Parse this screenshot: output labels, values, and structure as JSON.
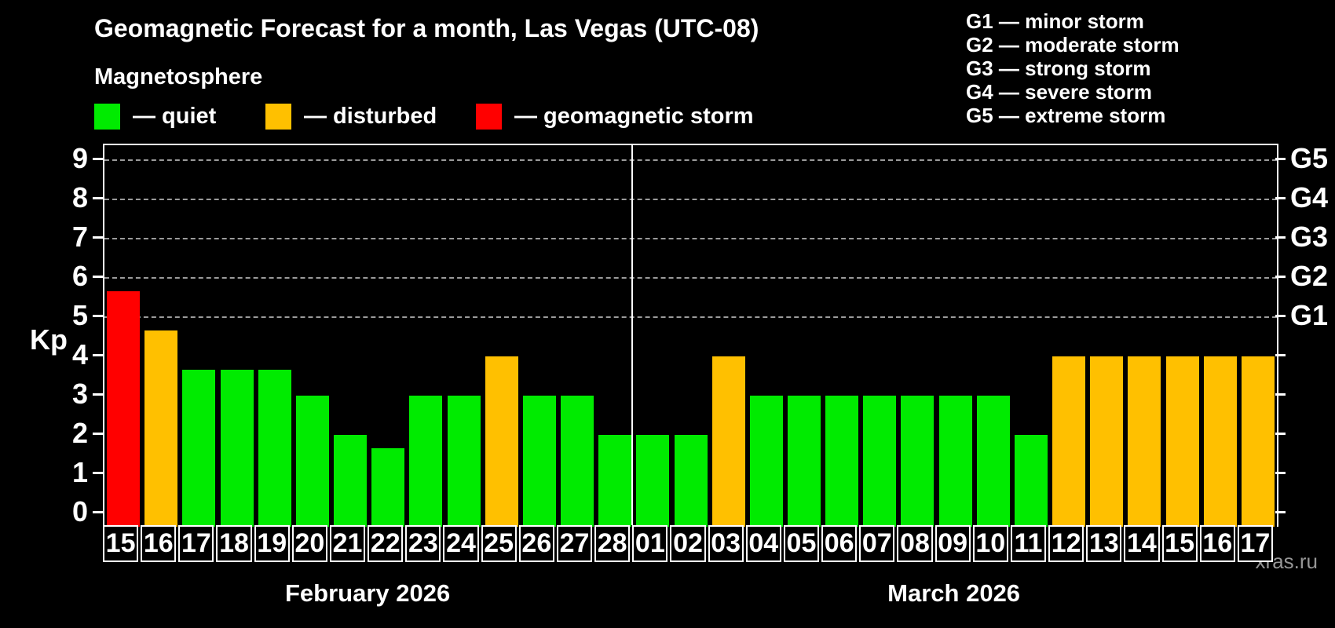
{
  "title": "Geomagnetic Forecast for a month, Las Vegas (UTC-08)",
  "subtitle": "Magnetosphere",
  "legend": [
    {
      "key": "quiet",
      "label": "— quiet",
      "color": "#00EB00"
    },
    {
      "key": "disturbed",
      "label": "— disturbed",
      "color": "#FFC000"
    },
    {
      "key": "storm",
      "label": "— geomagnetic storm",
      "color": "#FF0000"
    }
  ],
  "legend_offsets": [
    0,
    218,
    486
  ],
  "g_legend": [
    "G1 — minor storm",
    "G2 — moderate storm",
    "G3 — strong storm",
    "G4 — severe storm",
    "G5 — extreme storm"
  ],
  "watermark": "xras.ru",
  "chart_data": {
    "type": "bar",
    "ylabel": "Kp",
    "ylim": [
      -0.34,
      9.38
    ],
    "y_ticks": [
      0,
      1,
      2,
      3,
      4,
      5,
      6,
      7,
      8,
      9
    ],
    "gridlines_at": [
      5,
      6,
      7,
      8,
      9
    ],
    "grid": "dashed horizontal at G-storm levels only",
    "right_axis": [
      {
        "kp": 5,
        "label": "G1"
      },
      {
        "kp": 6,
        "label": "G2"
      },
      {
        "kp": 7,
        "label": "G3"
      },
      {
        "kp": 8,
        "label": "G4"
      },
      {
        "kp": 9,
        "label": "G5"
      }
    ],
    "status_colors": {
      "quiet": "#00EB00",
      "disturbed": "#FFC000",
      "storm": "#FF0000"
    },
    "months": [
      {
        "label": "February 2026",
        "days": [
          {
            "day": "15",
            "kp": 5.67,
            "status": "storm"
          },
          {
            "day": "16",
            "kp": 4.67,
            "status": "disturbed"
          },
          {
            "day": "17",
            "kp": 3.67,
            "status": "quiet"
          },
          {
            "day": "18",
            "kp": 3.67,
            "status": "quiet"
          },
          {
            "day": "19",
            "kp": 3.67,
            "status": "quiet"
          },
          {
            "day": "20",
            "kp": 3,
            "status": "quiet"
          },
          {
            "day": "21",
            "kp": 2,
            "status": "quiet"
          },
          {
            "day": "22",
            "kp": 1.67,
            "status": "quiet"
          },
          {
            "day": "23",
            "kp": 3,
            "status": "quiet"
          },
          {
            "day": "24",
            "kp": 3,
            "status": "quiet"
          },
          {
            "day": "25",
            "kp": 4,
            "status": "disturbed"
          },
          {
            "day": "26",
            "kp": 3,
            "status": "quiet"
          },
          {
            "day": "27",
            "kp": 3,
            "status": "quiet"
          },
          {
            "day": "28",
            "kp": 2,
            "status": "quiet"
          }
        ]
      },
      {
        "label": "March 2026",
        "days": [
          {
            "day": "01",
            "kp": 2,
            "status": "quiet"
          },
          {
            "day": "02",
            "kp": 2,
            "status": "quiet"
          },
          {
            "day": "03",
            "kp": 4,
            "status": "disturbed"
          },
          {
            "day": "04",
            "kp": 3,
            "status": "quiet"
          },
          {
            "day": "05",
            "kp": 3,
            "status": "quiet"
          },
          {
            "day": "06",
            "kp": 3,
            "status": "quiet"
          },
          {
            "day": "07",
            "kp": 3,
            "status": "quiet"
          },
          {
            "day": "08",
            "kp": 3,
            "status": "quiet"
          },
          {
            "day": "09",
            "kp": 3,
            "status": "quiet"
          },
          {
            "day": "10",
            "kp": 3,
            "status": "quiet"
          },
          {
            "day": "11",
            "kp": 2,
            "status": "quiet"
          },
          {
            "day": "12",
            "kp": 4,
            "status": "disturbed"
          },
          {
            "day": "13",
            "kp": 4,
            "status": "disturbed"
          },
          {
            "day": "14",
            "kp": 4,
            "status": "disturbed"
          },
          {
            "day": "15",
            "kp": 4,
            "status": "disturbed"
          },
          {
            "day": "16",
            "kp": 4,
            "status": "disturbed"
          },
          {
            "day": "17",
            "kp": 4,
            "status": "disturbed"
          }
        ]
      }
    ]
  }
}
